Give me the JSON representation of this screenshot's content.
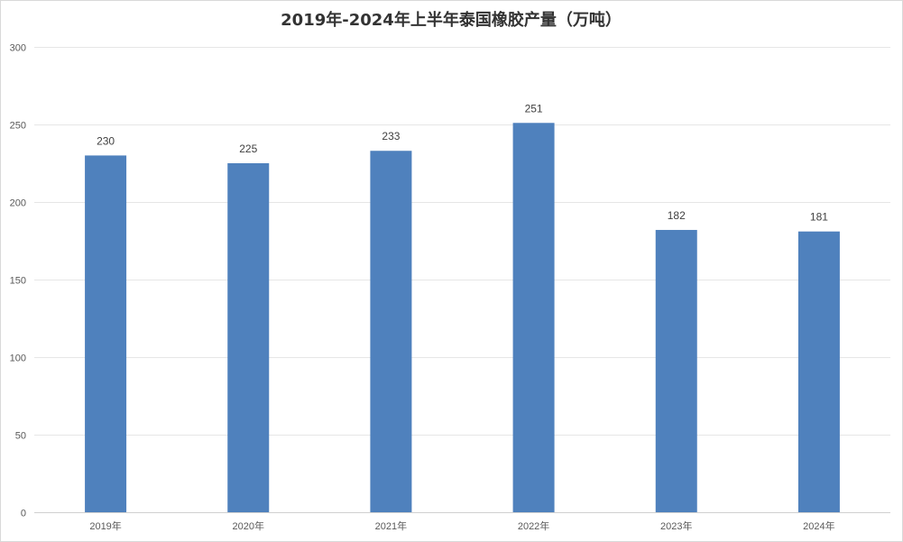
{
  "chart_data": {
    "type": "bar",
    "title": "2019年-2024年上半年泰国橡胶产量（万吨）",
    "xlabel": "",
    "ylabel": "",
    "categories": [
      "2019年",
      "2020年",
      "2021年",
      "2022年",
      "2023年",
      "2024年"
    ],
    "values": [
      230,
      225,
      233,
      251,
      182,
      181
    ],
    "data_labels": [
      "230",
      "225",
      "233",
      "251",
      "182",
      "181"
    ],
    "ylim": [
      0,
      300
    ],
    "yticks": [
      0,
      50,
      100,
      150,
      200,
      250,
      300
    ],
    "ytick_labels": [
      "0",
      "50",
      "100",
      "150",
      "200",
      "250",
      "300"
    ],
    "grid": true,
    "legend": "none",
    "bar_color": "#4f81bd"
  }
}
